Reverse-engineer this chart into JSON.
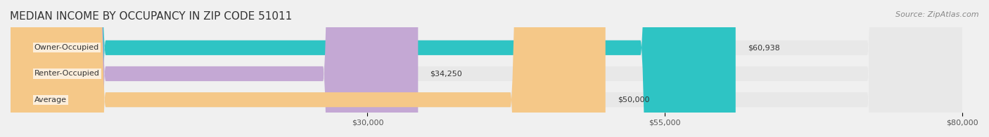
{
  "title": "MEDIAN INCOME BY OCCUPANCY IN ZIP CODE 51011",
  "source": "Source: ZipAtlas.com",
  "categories": [
    "Owner-Occupied",
    "Renter-Occupied",
    "Average"
  ],
  "values": [
    60938,
    34250,
    50000
  ],
  "bar_colors": [
    "#2ec4c4",
    "#c4a8d4",
    "#f5c888"
  ],
  "bar_edge_colors": [
    "#2ec4c4",
    "#c4a8d4",
    "#f5c888"
  ],
  "value_labels": [
    "$60,938",
    "$34,250",
    "$50,000"
  ],
  "xlim": [
    0,
    80000
  ],
  "xticks": [
    30000,
    55000,
    80000
  ],
  "xtick_labels": [
    "$30,000",
    "$55,000",
    "$80,000"
  ],
  "background_color": "#f0f0f0",
  "bar_bg_color": "#e8e8e8",
  "title_fontsize": 11,
  "source_fontsize": 8,
  "label_fontsize": 8,
  "tick_fontsize": 8
}
